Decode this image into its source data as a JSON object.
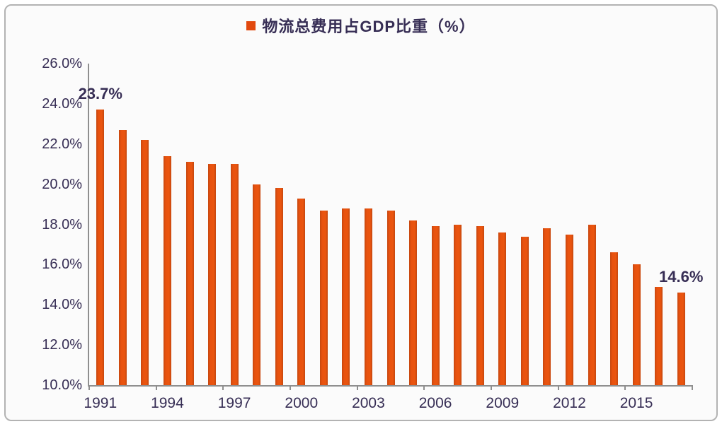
{
  "frame": {
    "background": "#fbfbfb",
    "border_color": "#b3b3b3"
  },
  "legend": {
    "label": "物流总费用占GDP比重（%）",
    "marker_color": "#e2490e"
  },
  "colors": {
    "bar": "#e2490e",
    "text": "#372e55",
    "axis": "#8f8f8f"
  },
  "chart_data": {
    "type": "bar",
    "title": "物流总费用占GDP比重（%）",
    "xlabel": "",
    "ylabel": "",
    "x": [
      1991,
      1992,
      1993,
      1994,
      1995,
      1996,
      1997,
      1998,
      1999,
      2000,
      2001,
      2002,
      2003,
      2004,
      2005,
      2006,
      2007,
      2008,
      2009,
      2010,
      2011,
      2012,
      2013,
      2014,
      2015,
      2016,
      2017
    ],
    "values": [
      23.7,
      22.7,
      22.2,
      21.4,
      21.1,
      21.0,
      21.0,
      20.0,
      19.8,
      19.3,
      18.7,
      18.8,
      18.8,
      18.7,
      18.2,
      17.9,
      18.0,
      17.9,
      17.6,
      17.4,
      17.8,
      17.5,
      18.0,
      16.6,
      16.0,
      14.9,
      14.6
    ],
    "x_tick_labels": [
      "1991",
      "1994",
      "1997",
      "2000",
      "2003",
      "2006",
      "2009",
      "2012",
      "2015"
    ],
    "x_tick_every": 3,
    "y_ticks": [
      "26.0%",
      "24.0%",
      "22.0%",
      "20.0%",
      "18.0%",
      "16.0%",
      "14.0%",
      "12.0%",
      "10.0%"
    ],
    "ylim": [
      10,
      26
    ],
    "grid": false,
    "legend_position": "top-center",
    "annotations": [
      {
        "index": 0,
        "text": "23.7%"
      },
      {
        "index": 26,
        "text": "14.6%"
      }
    ]
  }
}
